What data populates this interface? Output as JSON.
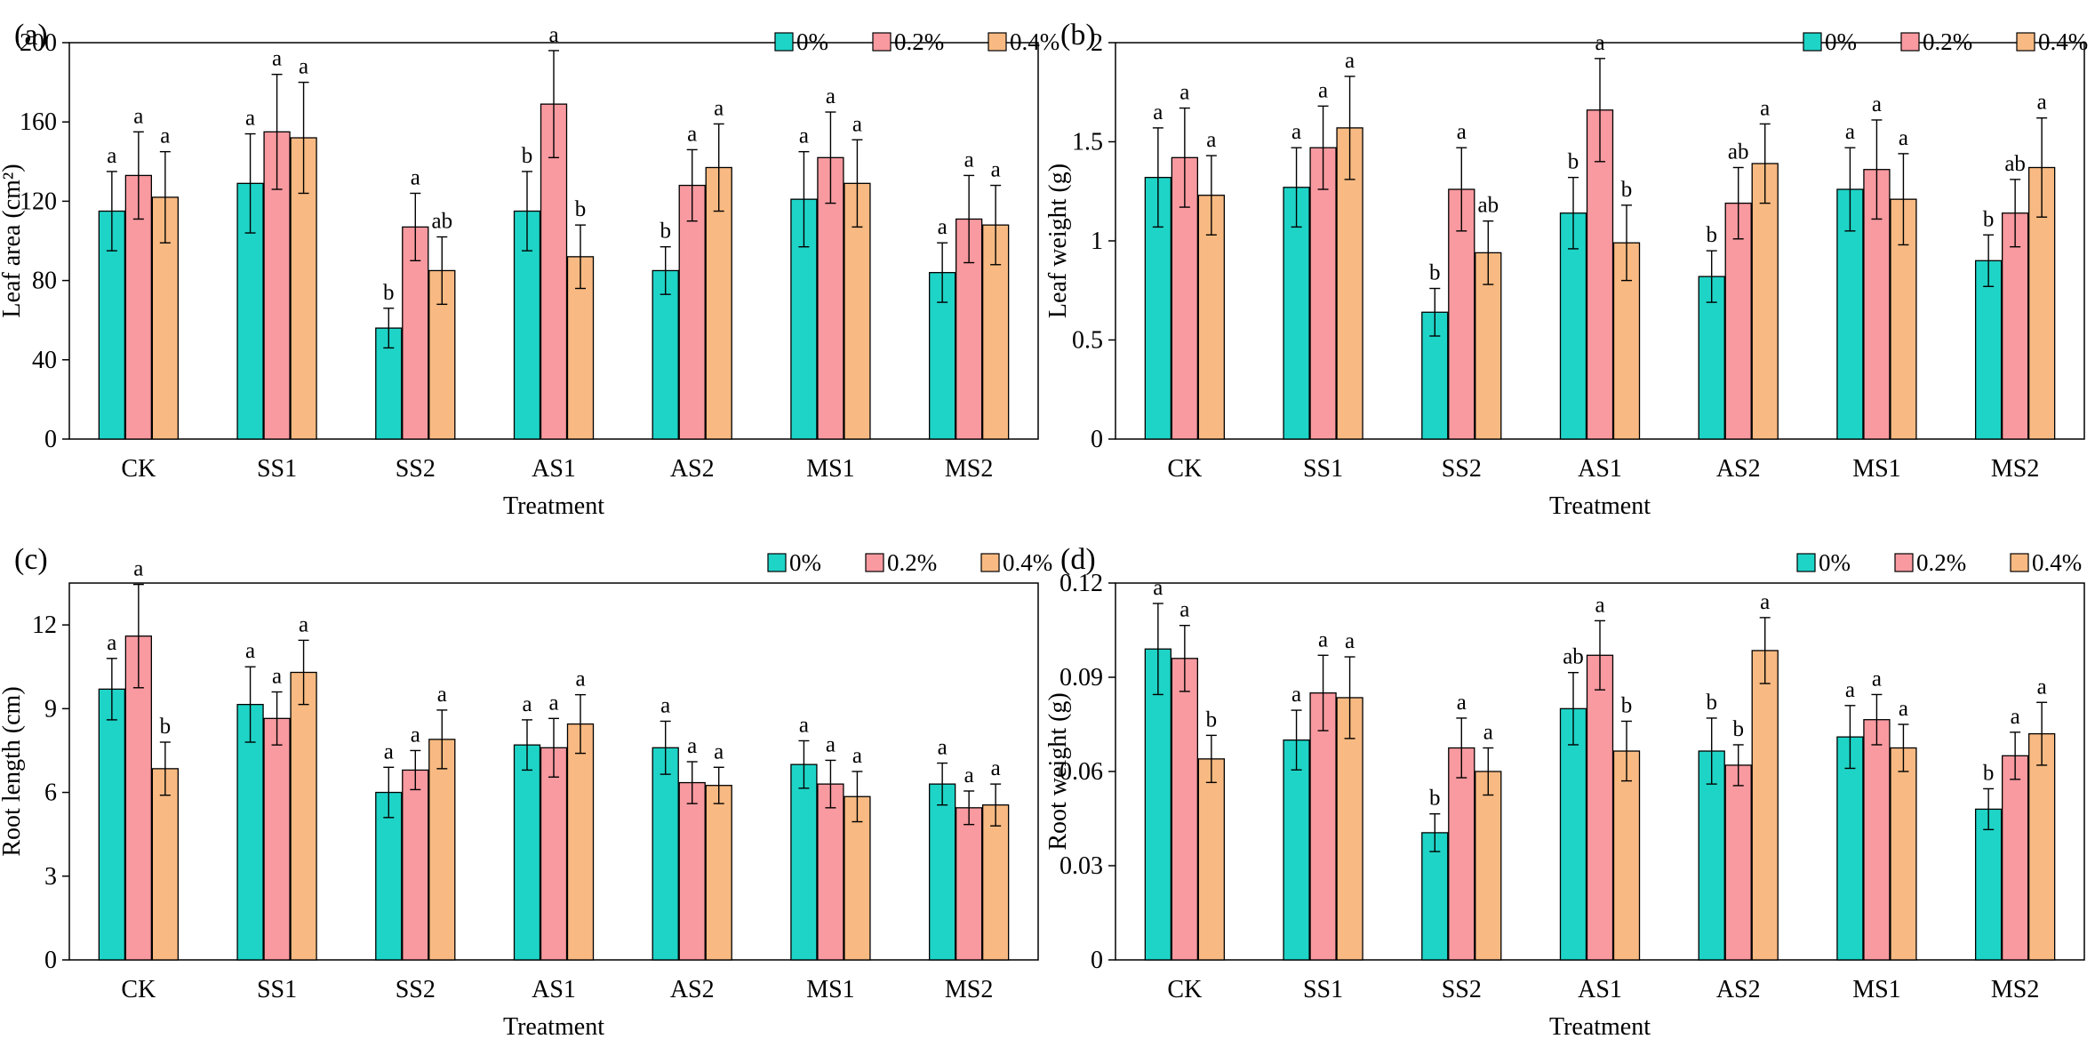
{
  "legend": [
    "0%",
    "0.2%",
    "0.4%"
  ],
  "colors": {
    "series_0": "#1ed4c7",
    "series_1": "#f89aa0",
    "series_2": "#f8ba82"
  },
  "chart_data": [
    {
      "panel": "(a)",
      "type": "bar",
      "xlabel": "Treatment",
      "ylabel": "Leaf area (cm²)",
      "ylim": [
        0,
        200
      ],
      "yticks": [
        "0",
        "40",
        "80",
        "120",
        "160",
        "200"
      ],
      "categories": [
        "CK",
        "SS1",
        "SS2",
        "AS1",
        "AS2",
        "MS1",
        "MS2"
      ],
      "series": [
        {
          "name": "0%",
          "values": [
            115,
            129,
            56,
            115,
            85,
            121,
            84
          ],
          "errors": [
            20,
            25,
            10,
            20,
            12,
            24,
            15
          ],
          "labels": [
            "a",
            "a",
            "b",
            "b",
            "b",
            "a",
            "a"
          ]
        },
        {
          "name": "0.2%",
          "values": [
            133,
            155,
            107,
            169,
            128,
            142,
            111
          ],
          "errors": [
            22,
            29,
            17,
            27,
            18,
            23,
            22
          ],
          "labels": [
            "a",
            "a",
            "a",
            "a",
            "a",
            "a",
            "a"
          ]
        },
        {
          "name": "0.4%",
          "values": [
            122,
            152,
            85,
            92,
            137,
            129,
            108
          ],
          "errors": [
            23,
            28,
            17,
            16,
            22,
            22,
            20
          ],
          "labels": [
            "a",
            "a",
            "ab",
            "b",
            "a",
            "a",
            "a"
          ]
        }
      ]
    },
    {
      "panel": "(b)",
      "type": "bar",
      "xlabel": "Treatment",
      "ylabel": "Leaf weight (g)",
      "ylim": [
        0,
        2
      ],
      "yticks": [
        "0",
        "0.5",
        "1",
        "1.5",
        "2"
      ],
      "categories": [
        "CK",
        "SS1",
        "SS2",
        "AS1",
        "AS2",
        "MS1",
        "MS2"
      ],
      "series": [
        {
          "name": "0%",
          "values": [
            1.32,
            1.27,
            0.64,
            1.14,
            0.82,
            1.26,
            0.9
          ],
          "errors": [
            0.25,
            0.2,
            0.12,
            0.18,
            0.13,
            0.21,
            0.13
          ],
          "labels": [
            "a",
            "a",
            "b",
            "b",
            "b",
            "a",
            "b"
          ]
        },
        {
          "name": "0.2%",
          "values": [
            1.42,
            1.47,
            1.26,
            1.66,
            1.19,
            1.36,
            1.14
          ],
          "errors": [
            0.25,
            0.21,
            0.21,
            0.26,
            0.18,
            0.25,
            0.17
          ],
          "labels": [
            "a",
            "a",
            "a",
            "a",
            "ab",
            "a",
            "ab"
          ]
        },
        {
          "name": "0.4%",
          "values": [
            1.23,
            1.57,
            0.94,
            0.99,
            1.39,
            1.21,
            1.37
          ],
          "errors": [
            0.2,
            0.26,
            0.16,
            0.19,
            0.2,
            0.23,
            0.25
          ],
          "labels": [
            "a",
            "a",
            "ab",
            "b",
            "a",
            "a",
            "a"
          ]
        }
      ]
    },
    {
      "panel": "(c)",
      "type": "bar",
      "xlabel": "Treatment",
      "ylabel": "Root length (cm)",
      "ylim": [
        0,
        13.5
      ],
      "yticks": [
        "0",
        "3",
        "6",
        "9",
        "12"
      ],
      "categories": [
        "CK",
        "SS1",
        "SS2",
        "AS1",
        "AS2",
        "MS1",
        "MS2"
      ],
      "series": [
        {
          "name": "0%",
          "values": [
            9.7,
            9.15,
            6.0,
            7.7,
            7.6,
            7.0,
            6.3
          ],
          "errors": [
            1.1,
            1.35,
            0.9,
            0.9,
            0.95,
            0.85,
            0.75
          ],
          "labels": [
            "a",
            "a",
            "a",
            "a",
            "a",
            "a",
            "a"
          ]
        },
        {
          "name": "0.2%",
          "values": [
            11.6,
            8.65,
            6.8,
            7.6,
            6.35,
            6.3,
            5.45
          ],
          "errors": [
            1.85,
            0.95,
            0.7,
            1.05,
            0.75,
            0.85,
            0.6
          ],
          "labels": [
            "a",
            "a",
            "a",
            "a",
            "a",
            "a",
            "a"
          ]
        },
        {
          "name": "0.4%",
          "values": [
            6.85,
            10.3,
            7.9,
            8.45,
            6.25,
            5.85,
            5.55
          ],
          "errors": [
            0.95,
            1.15,
            1.05,
            1.05,
            0.65,
            0.9,
            0.75
          ],
          "labels": [
            "b",
            "a",
            "a",
            "a",
            "a",
            "a",
            "a"
          ]
        }
      ]
    },
    {
      "panel": "(d)",
      "type": "bar",
      "xlabel": "Treatment",
      "ylabel": "Root weight (g)",
      "ylim": [
        0,
        0.12
      ],
      "yticks": [
        "0",
        "0.03",
        "0.06",
        "0.09",
        "0.12"
      ],
      "categories": [
        "CK",
        "SS1",
        "SS2",
        "AS1",
        "AS2",
        "MS1",
        "MS2"
      ],
      "series": [
        {
          "name": "0%",
          "values": [
            0.099,
            0.07,
            0.0405,
            0.08,
            0.0665,
            0.071,
            0.048
          ],
          "errors": [
            0.0145,
            0.0095,
            0.006,
            0.0115,
            0.0105,
            0.01,
            0.0065
          ],
          "labels": [
            "a",
            "a",
            "b",
            "ab",
            "b",
            "a",
            "b"
          ]
        },
        {
          "name": "0.2%",
          "values": [
            0.096,
            0.085,
            0.0675,
            0.097,
            0.062,
            0.0765,
            0.065
          ],
          "errors": [
            0.0105,
            0.012,
            0.0095,
            0.011,
            0.0065,
            0.008,
            0.0075
          ],
          "labels": [
            "a",
            "a",
            "a",
            "a",
            "b",
            "a",
            "a"
          ]
        },
        {
          "name": "0.4%",
          "values": [
            0.064,
            0.0835,
            0.06,
            0.0665,
            0.0985,
            0.0675,
            0.072
          ],
          "errors": [
            0.0075,
            0.013,
            0.0075,
            0.0095,
            0.0105,
            0.0075,
            0.01
          ],
          "labels": [
            "b",
            "a",
            "a",
            "b",
            "a",
            "a",
            "a"
          ]
        }
      ]
    }
  ]
}
